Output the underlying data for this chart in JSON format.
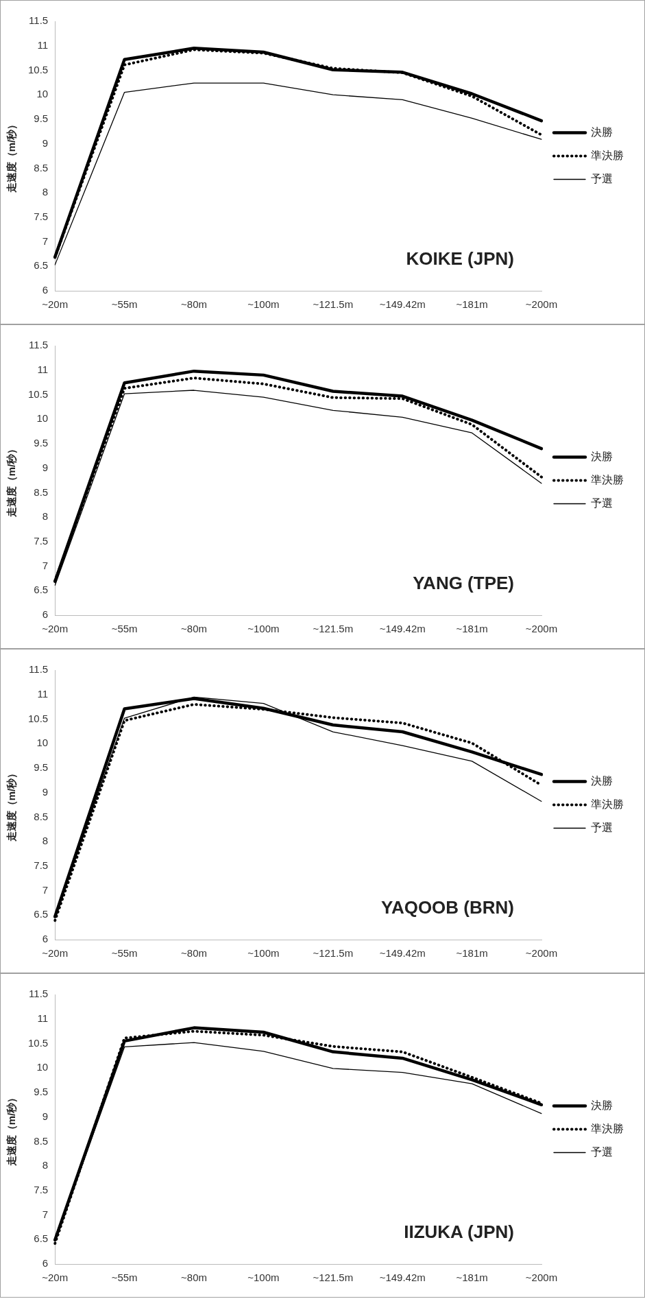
{
  "chart_data": [
    {
      "type": "line",
      "ylabel": "走速度（m/秒）",
      "categories": [
        "~20m",
        "~55m",
        "~80m",
        "~100m",
        "~121.5m",
        "~149.42m",
        "~181m",
        "~200m"
      ],
      "ylim": [
        6,
        11.5
      ],
      "yticks": [
        6,
        6.5,
        7,
        7.5,
        8,
        8.5,
        9,
        9.5,
        10,
        10.5,
        11,
        11.5
      ],
      "grid": false,
      "legend": "right",
      "marker": "none",
      "annotations": [
        "KOIKE (JPN)"
      ],
      "series": [
        {
          "name": "決勝",
          "color": "#000000",
          "line_style": "solid",
          "values": [
            6.69,
            10.72,
            10.95,
            10.87,
            10.51,
            10.46,
            10.02,
            9.47
          ]
        },
        {
          "name": "準決勝",
          "color": "#000000",
          "line_style": "dotted",
          "values": [
            6.68,
            10.61,
            10.92,
            10.85,
            10.54,
            10.45,
            9.97,
            9.18
          ]
        },
        {
          "name": "予選",
          "color": "#000000",
          "line_style": "solid",
          "values": [
            6.53,
            10.05,
            10.24,
            10.24,
            10.0,
            9.9,
            9.52,
            9.09
          ]
        }
      ]
    },
    {
      "type": "line",
      "ylabel": "走速度（m/秒）",
      "categories": [
        "~20m",
        "~55m",
        "~80m",
        "~100m",
        "~121.5m",
        "~149.42m",
        "~181m",
        "~200m"
      ],
      "ylim": [
        6,
        11.5
      ],
      "yticks": [
        6,
        6.5,
        7,
        7.5,
        8,
        8.5,
        9,
        9.5,
        10,
        10.5,
        11,
        11.5
      ],
      "grid": false,
      "legend": "right",
      "marker": "none",
      "annotations": [
        "YANG (TPE)"
      ],
      "series": [
        {
          "name": "決勝",
          "color": "#000000",
          "line_style": "solid",
          "values": [
            6.69,
            10.74,
            10.98,
            10.9,
            10.57,
            10.47,
            9.98,
            9.4
          ]
        },
        {
          "name": "準決勝",
          "color": "#000000",
          "line_style": "dotted",
          "values": [
            6.7,
            10.63,
            10.84,
            10.72,
            10.44,
            10.42,
            9.89,
            8.82
          ]
        },
        {
          "name": "予選",
          "color": "#000000",
          "line_style": "solid",
          "values": [
            6.61,
            10.52,
            10.59,
            10.45,
            10.18,
            10.04,
            9.72,
            8.69
          ]
        }
      ]
    },
    {
      "type": "line",
      "ylabel": "走速度（m/秒）",
      "categories": [
        "~20m",
        "~55m",
        "~80m",
        "~100m",
        "~121.5m",
        "~149.42m",
        "~181m",
        "~200m"
      ],
      "ylim": [
        6,
        11.5
      ],
      "yticks": [
        6,
        6.5,
        7,
        7.5,
        8,
        8.5,
        9,
        9.5,
        10,
        10.5,
        11,
        11.5
      ],
      "grid": false,
      "legend": "right",
      "marker": "none",
      "annotations": [
        "YAQOOB (BRN)"
      ],
      "series": [
        {
          "name": "決勝",
          "color": "#000000",
          "line_style": "solid",
          "values": [
            6.47,
            10.71,
            10.92,
            10.72,
            10.38,
            10.24,
            9.83,
            9.37
          ]
        },
        {
          "name": "準決勝",
          "color": "#000000",
          "line_style": "dotted",
          "values": [
            6.39,
            10.47,
            10.8,
            10.7,
            10.53,
            10.42,
            10.01,
            9.15
          ]
        },
        {
          "name": "予選",
          "color": "#000000",
          "line_style": "solid",
          "values": [
            6.45,
            10.52,
            10.95,
            10.82,
            10.24,
            9.96,
            9.64,
            8.82
          ]
        }
      ]
    },
    {
      "type": "line",
      "ylabel": "走速度（m/秒）",
      "categories": [
        "~20m",
        "~55m",
        "~80m",
        "~100m",
        "~121.5m",
        "~149.42m",
        "~181m",
        "~200m"
      ],
      "ylim": [
        6,
        11.5
      ],
      "yticks": [
        6,
        6.5,
        7,
        7.5,
        8,
        8.5,
        9,
        9.5,
        10,
        10.5,
        11,
        11.5
      ],
      "grid": false,
      "legend": "right",
      "marker": "none",
      "annotations": [
        "IIZUKA (JPN)"
      ],
      "series": [
        {
          "name": "決勝",
          "color": "#000000",
          "line_style": "solid",
          "values": [
            6.49,
            10.55,
            10.82,
            10.73,
            10.33,
            10.2,
            9.76,
            9.25
          ]
        },
        {
          "name": "準決勝",
          "color": "#000000",
          "line_style": "dotted",
          "values": [
            6.42,
            10.61,
            10.75,
            10.67,
            10.44,
            10.33,
            9.81,
            9.28
          ]
        },
        {
          "name": "予選",
          "color": "#000000",
          "line_style": "solid",
          "values": [
            6.47,
            10.43,
            10.52,
            10.34,
            9.99,
            9.91,
            9.68,
            9.07
          ]
        }
      ]
    }
  ]
}
